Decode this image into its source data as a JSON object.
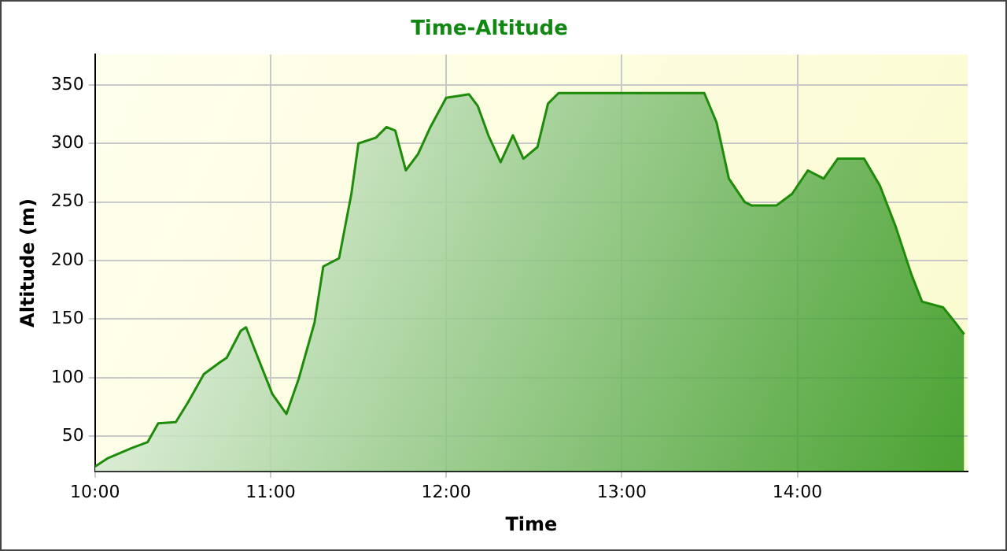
{
  "chart_data": {
    "type": "area",
    "title": "Time-Altitude",
    "xlabel": "Time",
    "ylabel": "Altitude (m)",
    "xlim": [
      10,
      14.97
    ],
    "xticks": [
      {
        "value": 10,
        "label": "10:00"
      },
      {
        "value": 11,
        "label": "11:00"
      },
      {
        "value": 12,
        "label": "12:00"
      },
      {
        "value": 13,
        "label": "13:00"
      },
      {
        "value": 14,
        "label": "14:00"
      }
    ],
    "ylim": [
      20,
      376
    ],
    "yticks": [
      50,
      100,
      150,
      200,
      250,
      300,
      350
    ],
    "grid": true,
    "legend": false,
    "marker": "none",
    "line_style": "solid",
    "series": [
      {
        "color": "#1e8c0a",
        "x": [
          10.0,
          10.07,
          10.21,
          10.3,
          10.36,
          10.46,
          10.53,
          10.62,
          10.71,
          10.75,
          10.83,
          10.86,
          10.92,
          11.01,
          11.09,
          11.16,
          11.25,
          11.3,
          11.39,
          11.46,
          11.5,
          11.6,
          11.66,
          11.71,
          11.77,
          11.84,
          11.91,
          12.0,
          12.13,
          12.18,
          12.24,
          12.31,
          12.38,
          12.44,
          12.52,
          12.58,
          12.64,
          13.47,
          13.54,
          13.61,
          13.7,
          13.74,
          13.88,
          13.97,
          14.06,
          14.15,
          14.23,
          14.38,
          14.47,
          14.56,
          14.65,
          14.71,
          14.83,
          14.9,
          14.95
        ],
        "values": [
          24,
          31,
          40,
          45,
          61,
          62,
          79,
          103,
          113,
          117,
          140,
          143,
          120,
          86,
          69,
          99,
          147,
          195,
          202,
          257,
          300,
          305,
          314,
          311,
          277,
          291,
          314,
          339,
          342,
          332,
          307,
          284,
          307,
          287,
          297,
          334,
          343,
          343,
          318,
          270,
          250,
          247,
          247,
          257,
          277,
          270,
          287,
          287,
          264,
          229,
          188,
          165,
          160,
          147,
          137
        ]
      }
    ]
  }
}
